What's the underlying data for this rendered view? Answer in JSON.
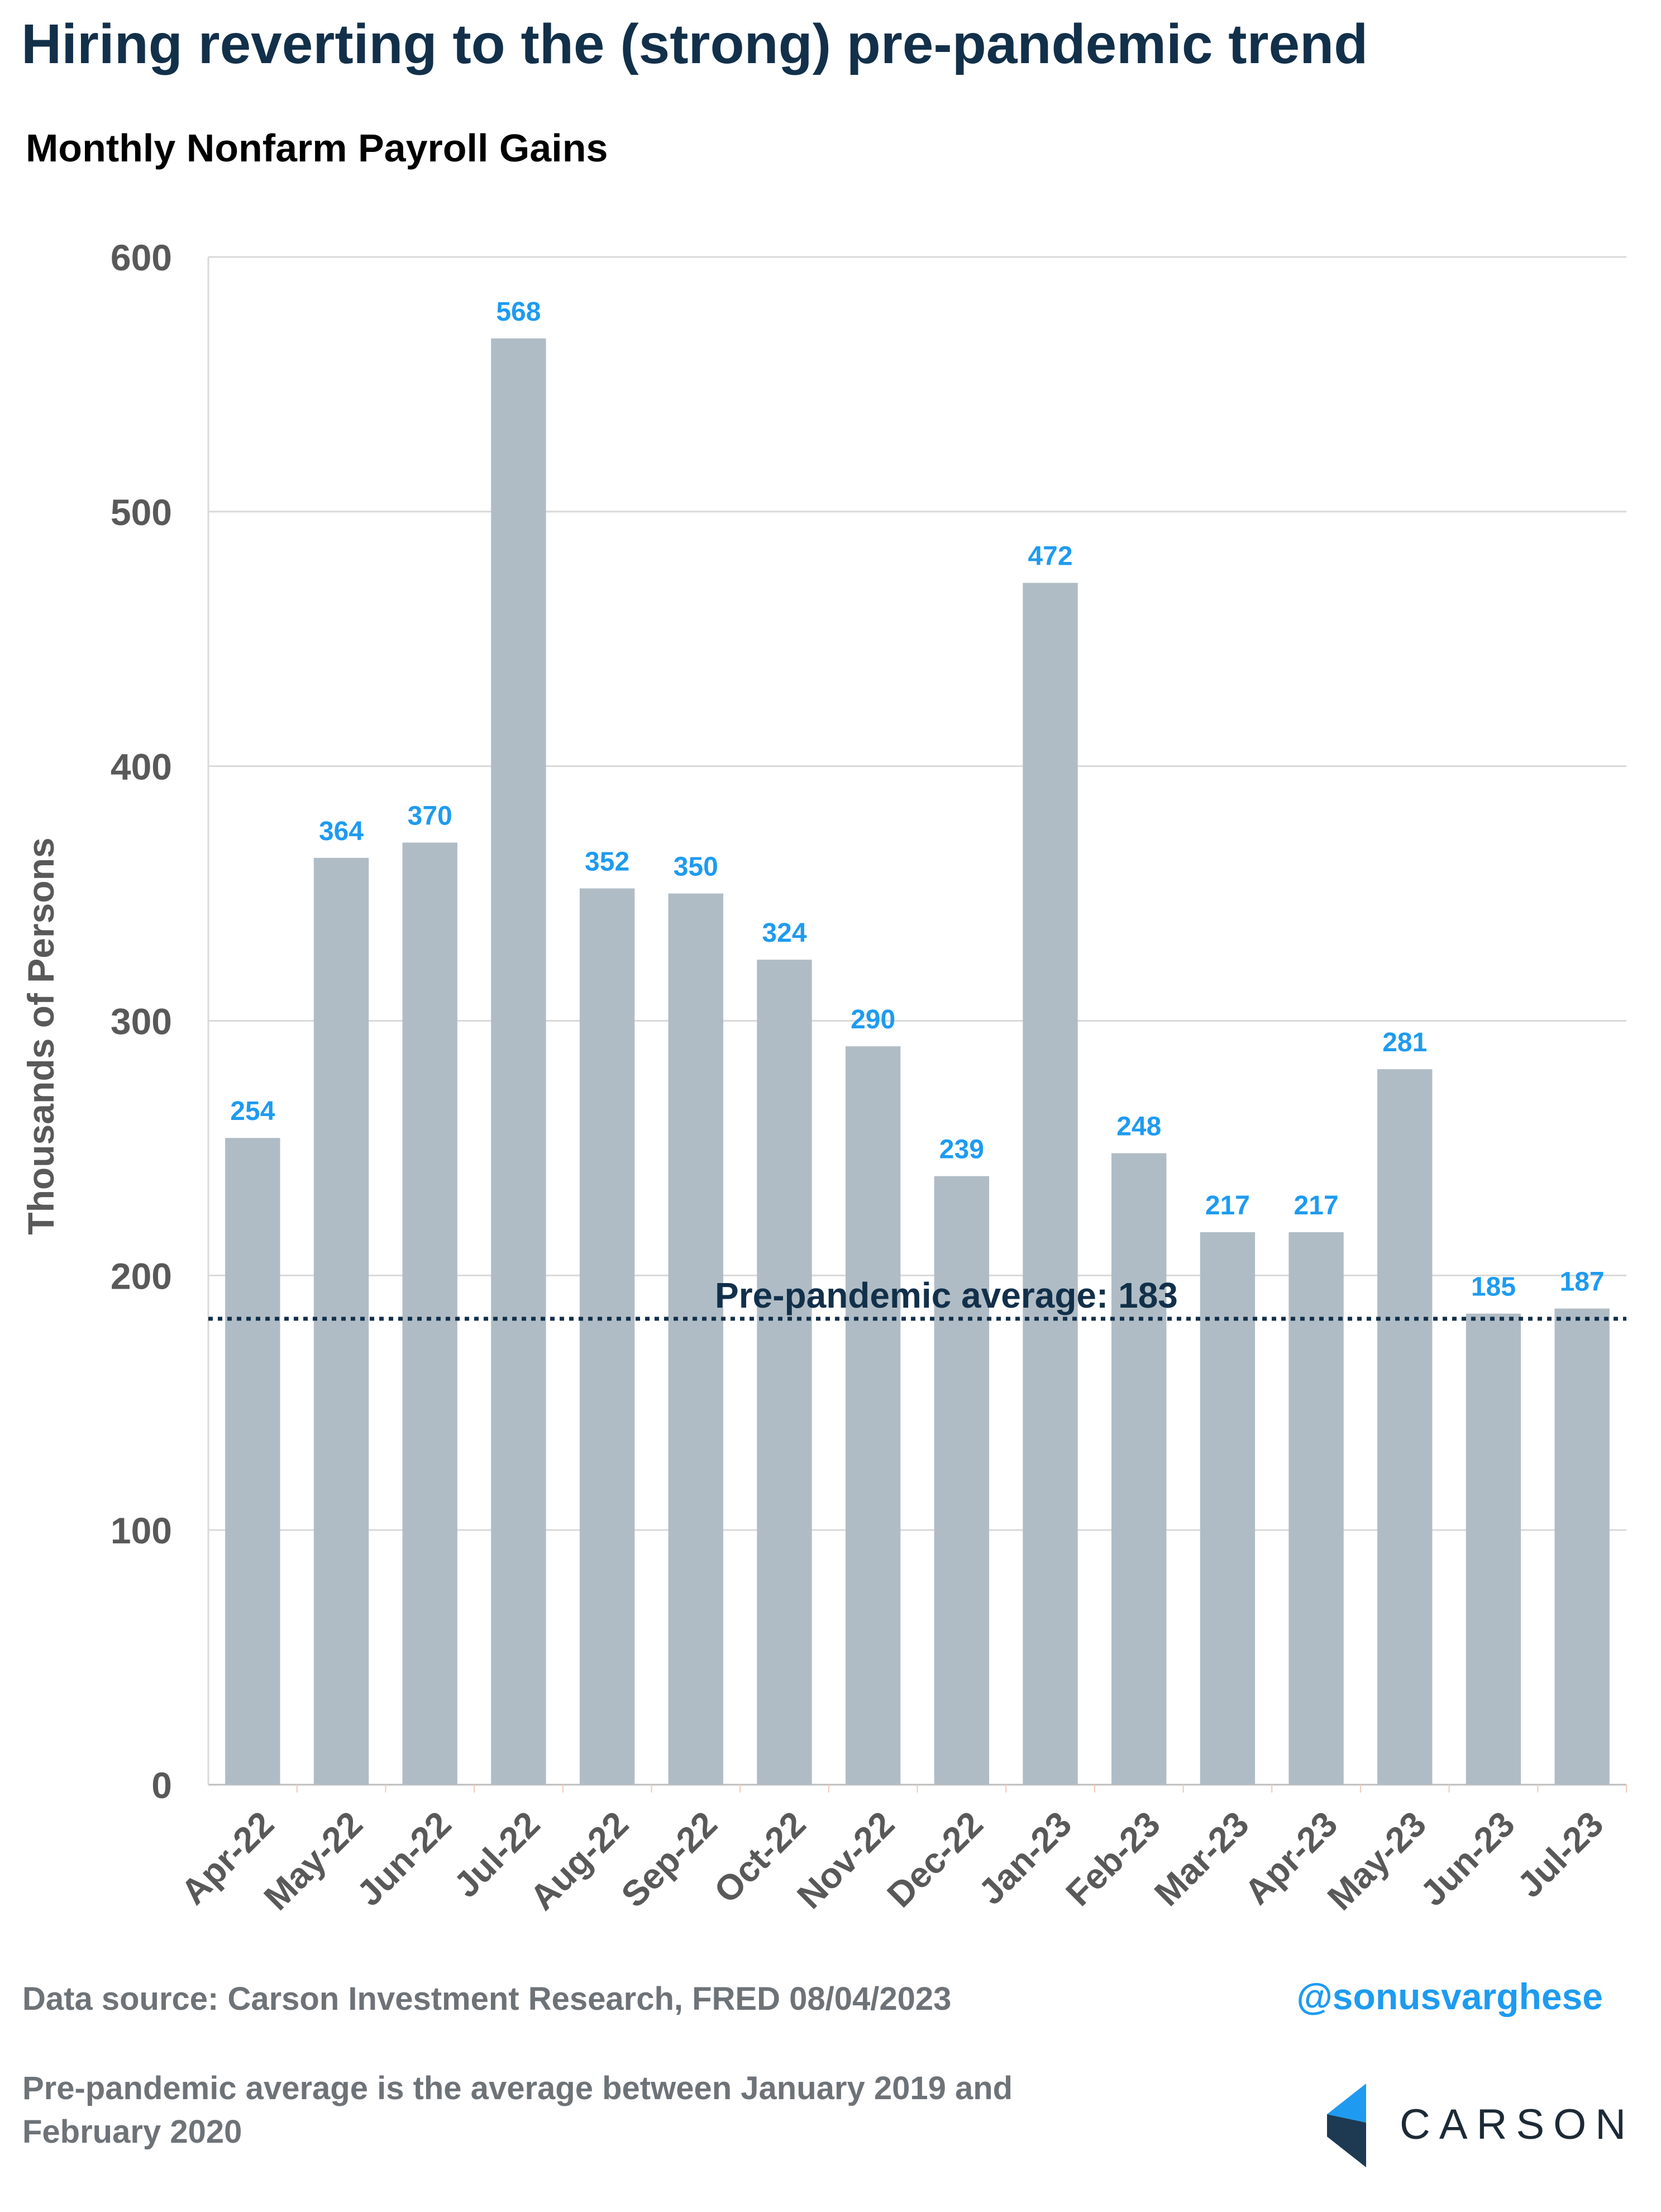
{
  "title": "Hiring reverting to the (strong) pre-pandemic trend",
  "subtitle": "Monthly Nonfarm Payroll Gains",
  "chart_data": {
    "type": "bar",
    "categories": [
      "Apr-22",
      "May-22",
      "Jun-22",
      "Jul-22",
      "Aug-22",
      "Sep-22",
      "Oct-22",
      "Nov-22",
      "Dec-22",
      "Jan-23",
      "Feb-23",
      "Mar-23",
      "Apr-23",
      "May-23",
      "Jun-23",
      "Jul-23"
    ],
    "values": [
      254,
      364,
      370,
      568,
      352,
      350,
      324,
      290,
      239,
      472,
      248,
      217,
      217,
      281,
      185,
      187
    ],
    "ylabel": "Thousands of Persons",
    "ylim": [
      0,
      600
    ],
    "yticks": [
      0,
      100,
      200,
      300,
      400,
      500,
      600
    ],
    "grid": true,
    "bar_color": "#b0bcc5",
    "label_color": "#1e9bf0",
    "reference_line": {
      "value": 183,
      "label": "Pre-pandemic average: 183",
      "style": "dotted",
      "color": "#12304a"
    }
  },
  "footer": {
    "source": "Data source: Carson Investment Research, FRED   08/04/2023",
    "handle": "@sonusvarghese",
    "note": "Pre-pandemic average is the average between January 2019 and February 2020",
    "logo_text": "CARSON"
  },
  "colors": {
    "title": "#12304a",
    "footer_text": "#6e7378",
    "logo_blue": "#1e9bf0",
    "logo_dark": "#1d3a52"
  }
}
